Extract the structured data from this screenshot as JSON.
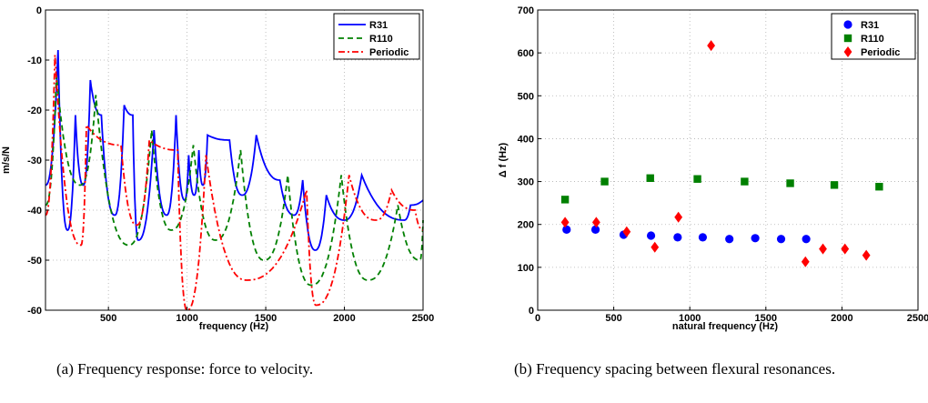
{
  "chart_data": [
    {
      "type": "line",
      "caption": "(a) Frequency response: force to velocity.",
      "xlabel": "frequency (Hz)",
      "ylabel": "m/s/N",
      "xlim": [
        100,
        2500
      ],
      "ylim": [
        -60,
        0
      ],
      "xticks": [
        500,
        1000,
        1500,
        2000,
        2500
      ],
      "yticks": [
        0,
        -10,
        -20,
        -30,
        -40,
        -50,
        -60
      ],
      "grid": true,
      "legend_position": "top-right",
      "series": [
        {
          "name": "R31",
          "color": "#0000ff",
          "style": "solid",
          "baseline": -38,
          "peaks": [
            [
              180,
              -8
            ],
            [
              290,
              -21
            ],
            [
              385,
              -14
            ],
            [
              455,
              -21
            ],
            [
              600,
              -19
            ],
            [
              655,
              -21
            ],
            [
              790,
              -24
            ],
            [
              930,
              -21
            ],
            [
              1010,
              -29
            ],
            [
              1075,
              -28
            ],
            [
              1130,
              -25
            ],
            [
              1270,
              -26
            ],
            [
              1440,
              -25
            ],
            [
              1590,
              -34
            ],
            [
              1735,
              -34
            ],
            [
              1885,
              -37
            ],
            [
              2110,
              -33
            ],
            [
              2420,
              -39
            ]
          ],
          "dips": [
            [
              240,
              -44
            ],
            [
              340,
              -35
            ],
            [
              540,
              -41
            ],
            [
              690,
              -46
            ],
            [
              870,
              -41
            ],
            [
              985,
              -38
            ],
            [
              1045,
              -37
            ],
            [
              1100,
              -35
            ],
            [
              1350,
              -37
            ],
            [
              1680,
              -41
            ],
            [
              1815,
              -48
            ],
            [
              2000,
              -42
            ],
            [
              2380,
              -42
            ]
          ]
        },
        {
          "name": "R110",
          "color": "#008000",
          "style": "dashed",
          "baseline": -42,
          "peaks": [
            [
              170,
              -13
            ],
            [
              420,
              -17
            ],
            [
              775,
              -24
            ],
            [
              1040,
              -27
            ],
            [
              1340,
              -28
            ],
            [
              1640,
              -33
            ],
            [
              1980,
              -33
            ],
            [
              2340,
              -39
            ]
          ],
          "dips": [
            [
              320,
              -35
            ],
            [
              630,
              -47
            ],
            [
              900,
              -44
            ],
            [
              1180,
              -46
            ],
            [
              1490,
              -50
            ],
            [
              1790,
              -55
            ],
            [
              2150,
              -54
            ],
            [
              2480,
              -50
            ]
          ]
        },
        {
          "name": "Periodic",
          "color": "#ff0000",
          "style": "dashdot",
          "baseline": -44,
          "peaks": [
            [
              160,
              -9
            ],
            [
              360,
              -23
            ],
            [
              580,
              -27
            ],
            [
              760,
              -26
            ],
            [
              940,
              -28
            ],
            [
              1120,
              -29
            ],
            [
              1760,
              -36
            ],
            [
              2030,
              -33
            ],
            [
              2300,
              -36
            ]
          ],
          "dips": [
            [
              325,
              -47
            ],
            [
              680,
              -43
            ],
            [
              1000,
              -60
            ],
            [
              1380,
              -54
            ],
            [
              1820,
              -59
            ],
            [
              2200,
              -42
            ],
            [
              2450,
              -40
            ]
          ]
        }
      ]
    },
    {
      "type": "scatter",
      "caption": "(b) Frequency spacing between flexural resonances.",
      "xlabel": "natural frequency (Hz)",
      "ylabel": "Δ f (Hz)",
      "xlim": [
        0,
        2500
      ],
      "ylim": [
        0,
        700
      ],
      "xticks": [
        0,
        500,
        1000,
        1500,
        2000,
        2500
      ],
      "yticks": [
        0,
        100,
        200,
        300,
        400,
        500,
        600,
        700
      ],
      "grid": true,
      "legend_position": "top-right",
      "series": [
        {
          "name": "R31",
          "color": "#0000ff",
          "marker": "circle",
          "x": [
            190,
            380,
            565,
            745,
            920,
            1085,
            1260,
            1430,
            1600,
            1765
          ],
          "y": [
            188,
            188,
            176,
            174,
            170,
            170,
            166,
            168,
            166,
            166
          ]
        },
        {
          "name": "R110",
          "color": "#008000",
          "marker": "square",
          "x": [
            180,
            440,
            740,
            1050,
            1360,
            1660,
            1950,
            2245
          ],
          "y": [
            258,
            300,
            308,
            306,
            300,
            296,
            292,
            288
          ]
        },
        {
          "name": "Periodic",
          "color": "#ff0000",
          "marker": "diamond",
          "x": [
            180,
            385,
            585,
            770,
            925,
            1140,
            1760,
            1875,
            2020,
            2160
          ],
          "y": [
            205,
            205,
            183,
            147,
            217,
            617,
            113,
            143,
            143,
            128
          ]
        }
      ]
    }
  ]
}
